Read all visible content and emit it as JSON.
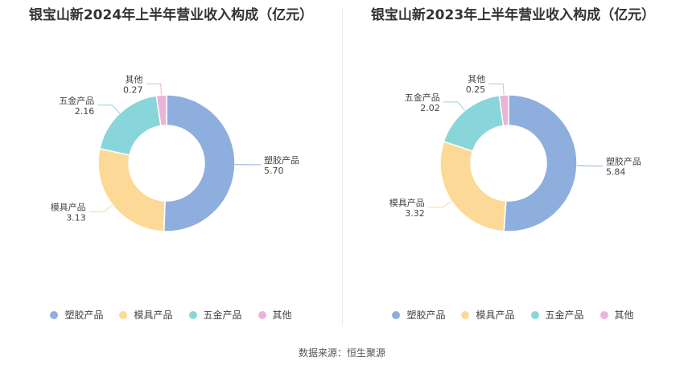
{
  "colors": [
    "#8eaede",
    "#fdd997",
    "#89d6da",
    "#eab3d9"
  ],
  "chart_data": [
    {
      "type": "pie",
      "title": "银宝山新2024年上半年营业收入构成（亿元）",
      "categories": [
        "塑胶产品",
        "模具产品",
        "五金产品",
        "其他"
      ],
      "values": [
        5.7,
        3.13,
        2.16,
        0.27
      ],
      "value_labels": [
        "5.70",
        "3.13",
        "2.16",
        "0.27"
      ],
      "legend": "bottom"
    },
    {
      "type": "pie",
      "title": "银宝山新2023年上半年营业收入构成（亿元）",
      "categories": [
        "塑胶产品",
        "模具产品",
        "五金产品",
        "其他"
      ],
      "values": [
        5.84,
        3.32,
        2.02,
        0.25
      ],
      "value_labels": [
        "5.84",
        "3.32",
        "2.02",
        "0.25"
      ],
      "legend": "bottom"
    }
  ],
  "footer": {
    "source": "数据来源：恒生聚源"
  }
}
